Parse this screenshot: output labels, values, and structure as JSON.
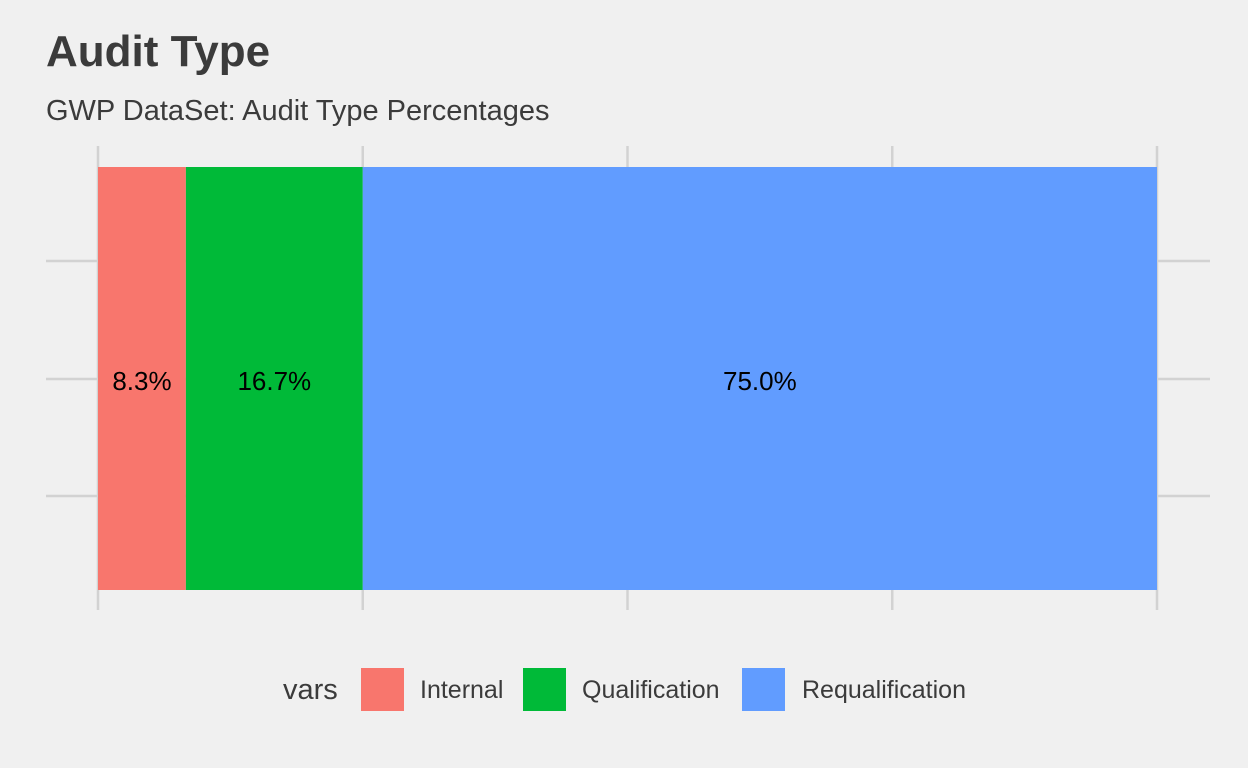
{
  "chart_data": {
    "type": "bar",
    "orientation": "horizontal-stacked",
    "title": "Audit Type",
    "subtitle": "GWP DataSet: Audit Type Percentages",
    "series": [
      {
        "name": "Internal",
        "value": 8.3,
        "label": "8.3%",
        "color": "#F8766D"
      },
      {
        "name": "Qualification",
        "value": 16.7,
        "label": "16.7%",
        "color": "#00BA38"
      },
      {
        "name": "Requalification",
        "value": 75.0,
        "label": "75.0%",
        "color": "#619CFF"
      }
    ],
    "xlim": [
      0,
      100
    ],
    "legend": {
      "title": "vars",
      "position": "bottom"
    },
    "grid": true,
    "axis_tick_labels": false,
    "colors": {
      "background": "#f0f0f0",
      "grid": "#d2d2d2",
      "text": "#3b3b3b",
      "label": "#000000"
    }
  }
}
